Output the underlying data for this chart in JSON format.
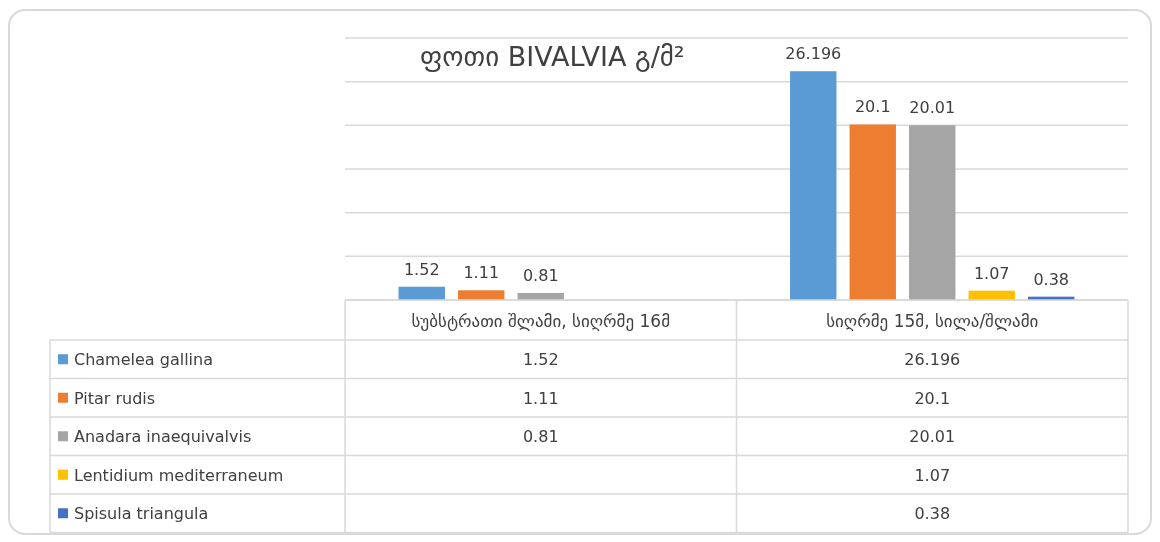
{
  "chart_data": {
    "type": "bar",
    "title": "ფოთი BIVALVIA გ/მ²",
    "categories": [
      "სუბსტრათი შლამი, სიღრმე 16მ",
      "სიღრმე 15მ, სილა/შლამი"
    ],
    "series": [
      {
        "name": "Chamelea gallina",
        "color": "#5b9bd5",
        "values": [
          1.52,
          26.196
        ],
        "value_labels": [
          "1.52",
          "26.196"
        ]
      },
      {
        "name": "Pitar rudis",
        "color": "#ed7d31",
        "values": [
          1.11,
          20.1
        ],
        "value_labels": [
          "1.11",
          "20.1"
        ]
      },
      {
        "name": "Anadara inaequivalvis",
        "color": "#a5a5a5",
        "values": [
          0.81,
          20.01
        ],
        "value_labels": [
          "0.81",
          "20.01"
        ]
      },
      {
        "name": "Lentidium mediterraneum",
        "color": "#ffc000",
        "values": [
          null,
          1.07
        ],
        "value_labels": [
          null,
          "1.07"
        ]
      },
      {
        "name": "Spisula triangula",
        "color": "#4472c4",
        "values": [
          null,
          0.38
        ],
        "value_labels": [
          null,
          "0.38"
        ]
      }
    ],
    "ylim": [
      0,
      30
    ],
    "yticks": [
      {
        "value": 0,
        "label": null
      },
      {
        "value": 5,
        "label": null
      },
      {
        "value": 10,
        "label": null
      },
      {
        "value": 15,
        "label": null
      },
      {
        "value": 20,
        "label": null
      },
      {
        "value": 25,
        "label": null
      },
      {
        "value": 30,
        "label": null
      }
    ],
    "annotations": [
      "1.52",
      "26.196",
      "1.11",
      "20.1",
      "0.81",
      "20.01",
      "1.07",
      "0.38"
    ],
    "grid": "y",
    "legend": "bottom",
    "tick_labels": "x"
  }
}
